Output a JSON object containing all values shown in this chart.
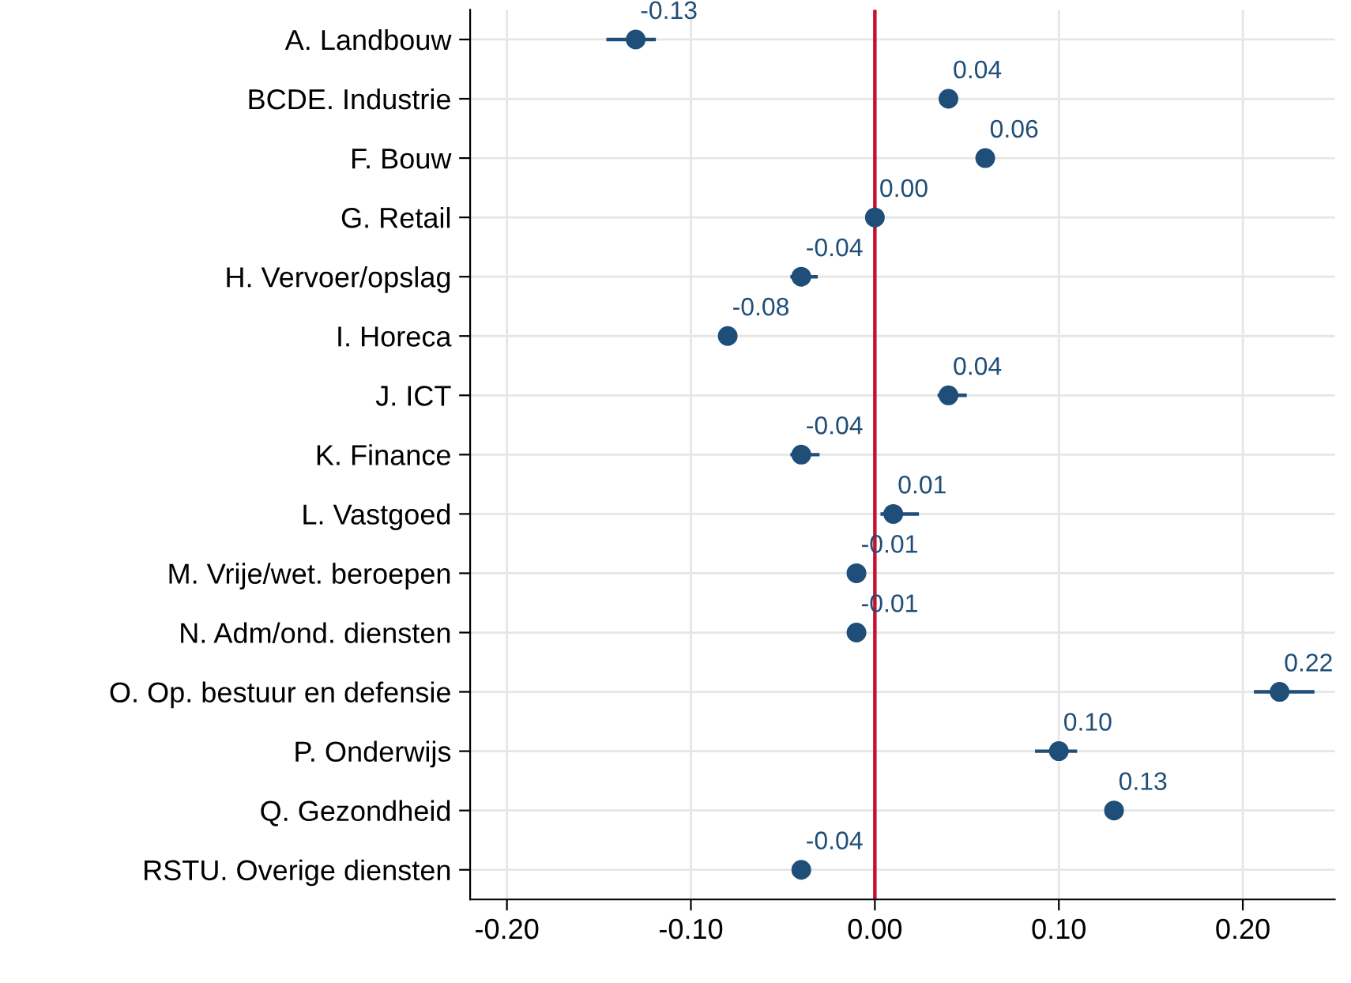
{
  "chart_data": {
    "type": "scatter",
    "orientation": "horizontal",
    "marker": "circle",
    "grid": true,
    "categories": [
      "A. Landbouw",
      "BCDE. Industrie",
      "F. Bouw",
      "G. Retail",
      "H. Vervoer/opslag",
      "I. Horeca",
      "J. ICT",
      "K. Finance",
      "L. Vastgoed",
      "M. Vrije/wet. beroepen",
      "N. Adm/ond. diensten",
      "O. Op. bestuur en defensie",
      "P. Onderwijs",
      "Q. Gezondheid",
      "RSTU. Overige diensten"
    ],
    "series": [
      {
        "color": "#1f4e79",
        "values": [
          -0.13,
          0.04,
          0.06,
          0.0,
          -0.04,
          -0.08,
          0.04,
          -0.04,
          0.01,
          -0.01,
          -0.01,
          0.22,
          0.1,
          0.13,
          -0.04
        ],
        "value_labels": [
          "-0.13",
          "0.04",
          "0.06",
          "0.00",
          "-0.04",
          "-0.08",
          "0.04",
          "-0.04",
          "0.01",
          "-0.01",
          "-0.01",
          "0.22",
          "0.10",
          "0.13",
          "-0.04"
        ],
        "errors": [
          [
            -0.145,
            -0.12
          ],
          null,
          null,
          null,
          [
            -0.045,
            -0.032
          ],
          null,
          [
            0.035,
            0.049
          ],
          [
            -0.045,
            -0.031
          ],
          [
            0.004,
            0.023
          ],
          null,
          null,
          [
            0.207,
            0.238
          ],
          [
            0.088,
            0.109
          ],
          null,
          null
        ]
      }
    ],
    "xlim": [
      -0.22,
      0.25
    ],
    "xticks": [
      {
        "value": -0.2,
        "label": "-0.20"
      },
      {
        "value": -0.1,
        "label": "-0.10"
      },
      {
        "value": 0,
        "label": "0.00"
      },
      {
        "value": 0.1,
        "label": "0.10"
      },
      {
        "value": 0.2,
        "label": "0.20"
      }
    ],
    "ref_lines": [
      {
        "axis": "x",
        "value": 0,
        "color": "#c8102e",
        "line_style": "solid"
      }
    ]
  }
}
